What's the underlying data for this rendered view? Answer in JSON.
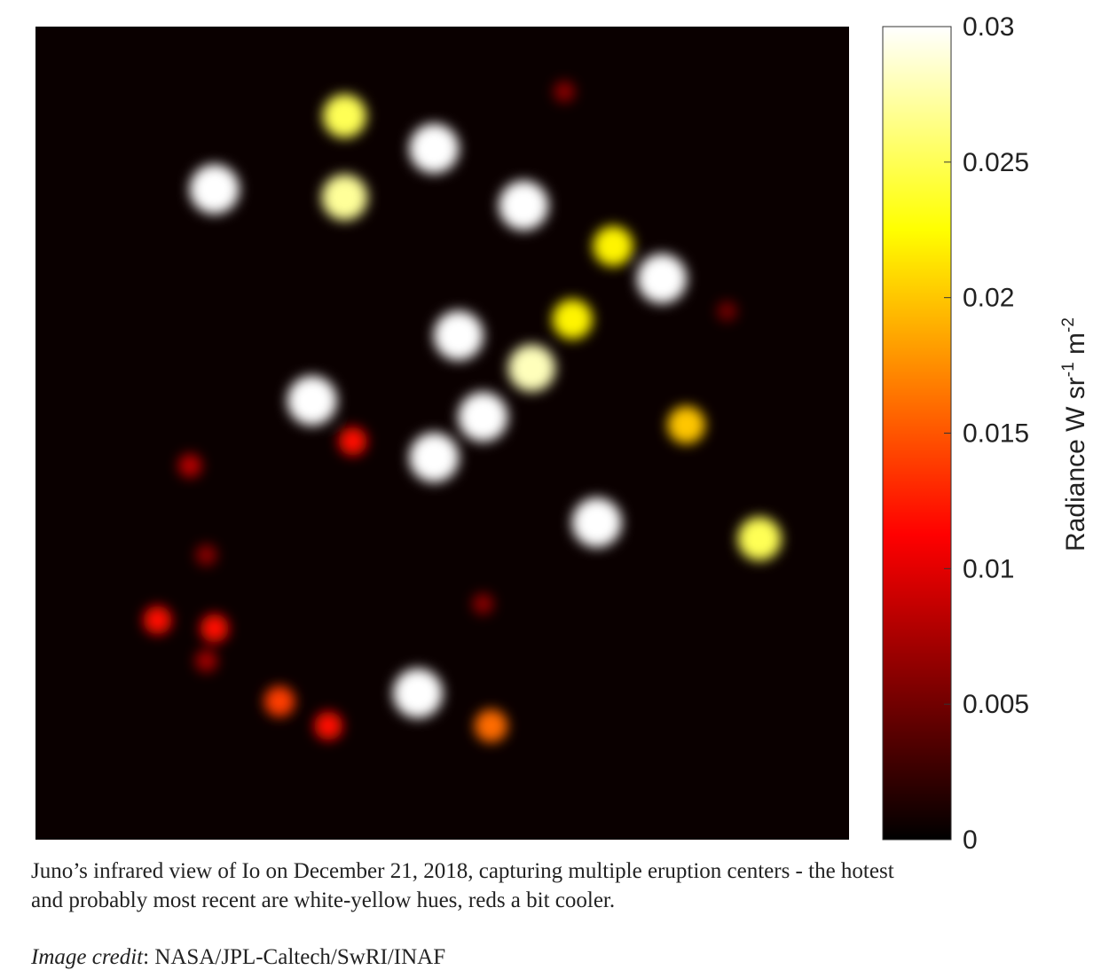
{
  "chart_data": {
    "type": "heatmap",
    "x": [
      0.38,
      0.49,
      0.22,
      0.38,
      0.6,
      0.71,
      0.77,
      0.66,
      0.52,
      0.61,
      0.34,
      0.55,
      0.49,
      0.39,
      0.8,
      0.69,
      0.89,
      0.47,
      0.3,
      0.36,
      0.56,
      0.15,
      0.22,
      0.19,
      0.21,
      0.65,
      0.85,
      0.55,
      0.21
    ],
    "y": [
      0.11,
      0.15,
      0.2,
      0.21,
      0.22,
      0.27,
      0.31,
      0.36,
      0.38,
      0.42,
      0.46,
      0.48,
      0.53,
      0.51,
      0.49,
      0.61,
      0.63,
      0.82,
      0.83,
      0.86,
      0.86,
      0.73,
      0.74,
      0.54,
      0.78,
      0.08,
      0.35,
      0.71,
      0.65
    ],
    "values": [
      0.025,
      0.03,
      0.03,
      0.027,
      0.03,
      0.022,
      0.03,
      0.022,
      0.03,
      0.028,
      0.03,
      0.03,
      0.03,
      0.012,
      0.02,
      0.03,
      0.025,
      0.03,
      0.014,
      0.012,
      0.016,
      0.012,
      0.012,
      0.008,
      0.007,
      0.006,
      0.005,
      0.006,
      0.006
    ],
    "colorbar_label": [
      "Radiance W sr",
      "-1",
      " m",
      "-2"
    ],
    "clim": [
      0,
      0.03
    ],
    "cticks": [
      0,
      0.005,
      0.01,
      0.015,
      0.02,
      0.025,
      0.03
    ]
  },
  "caption": {
    "lines": [
      "Juno’s infrared view of Io on December 21, 2018, capturing multiple eruption centers - the hotest",
      "and probably most recent are white-yellow hues, reds a bit cooler."
    ],
    "credit_label": "Image credit",
    "credit_text": ": NASA/JPL-Caltech/SwRI/INAF"
  }
}
